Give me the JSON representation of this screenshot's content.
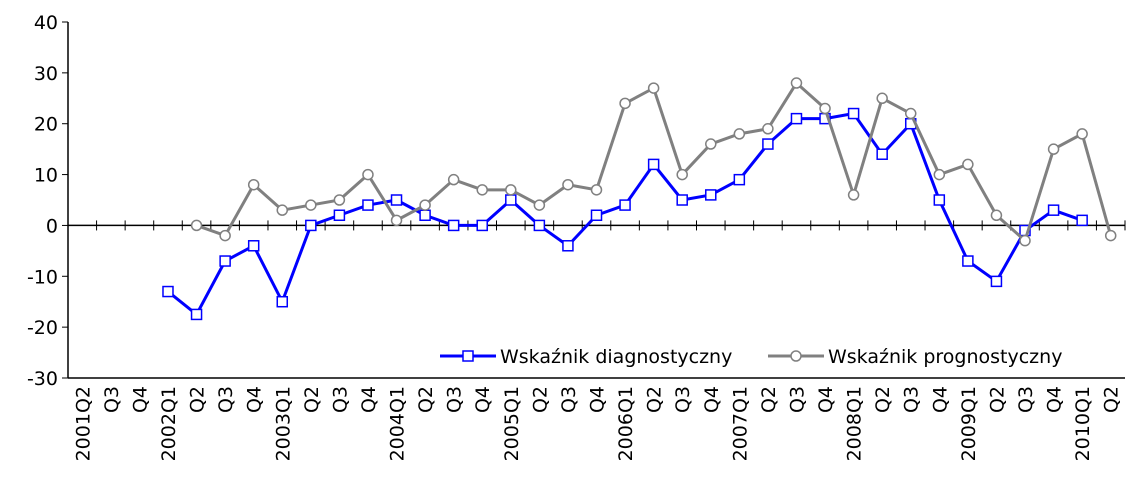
{
  "chart_data": {
    "type": "line",
    "categories": [
      "2001Q2",
      "Q3",
      "Q4",
      "2002Q1",
      "Q2",
      "Q3",
      "Q4",
      "2003Q1",
      "Q2",
      "Q3",
      "Q4",
      "2004Q1",
      "Q2",
      "Q3",
      "Q4",
      "2005Q1",
      "Q2",
      "Q3",
      "Q4",
      "2006Q1",
      "Q2",
      "Q3",
      "Q4",
      "2007Q1",
      "Q2",
      "Q3",
      "Q4",
      "2008Q1",
      "Q2",
      "Q3",
      "Q4",
      "2009Q1",
      "Q2",
      "Q3",
      "Q4",
      "2010Q1",
      "Q2"
    ],
    "series": [
      {
        "name": "Wskaźnik diagnostyczny",
        "color": "#0000ff",
        "marker": "square",
        "values": [
          null,
          null,
          null,
          -13,
          -17.5,
          -7,
          -4,
          -15,
          0,
          2,
          4,
          5,
          2,
          0,
          0,
          5,
          0,
          -4,
          2,
          4,
          12,
          5,
          6,
          9,
          16,
          21,
          21,
          22,
          14,
          20,
          5,
          -7,
          -11,
          -1,
          3,
          1,
          null
        ]
      },
      {
        "name": "Wskaźnik prognostyczny",
        "color": "#808080",
        "marker": "circle",
        "values": [
          null,
          null,
          null,
          null,
          0,
          -2,
          8,
          3,
          4,
          5,
          10,
          1,
          4,
          9,
          7,
          7,
          4,
          8,
          7,
          24,
          27,
          10,
          16,
          18,
          19,
          28,
          23,
          6,
          25,
          22,
          10,
          12,
          2,
          -3,
          15,
          18,
          -2
        ]
      }
    ],
    "ylim": [
      -30,
      40
    ],
    "yticks": [
      -30,
      -20,
      -10,
      0,
      10,
      20,
      30,
      40
    ],
    "grid": false,
    "legend": "bottom-right"
  }
}
